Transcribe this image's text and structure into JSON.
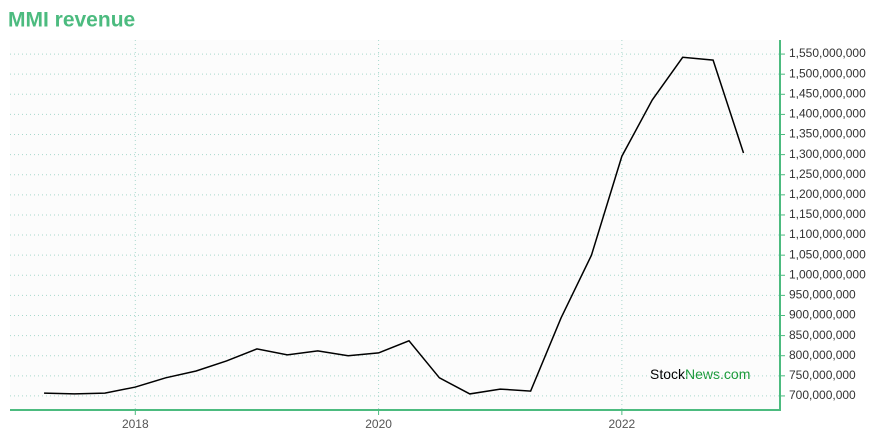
{
  "chart_data": {
    "type": "line",
    "title": "MMI revenue",
    "x": [
      2017.25,
      2017.5,
      2017.75,
      2018,
      2018.25,
      2018.5,
      2018.75,
      2019,
      2019.25,
      2019.5,
      2019.75,
      2020,
      2020.25,
      2020.5,
      2020.75,
      2021,
      2021.25,
      2021.5,
      2021.75,
      2022,
      2022.25,
      2022.5,
      2022.75,
      2023
    ],
    "series": [
      {
        "name": "MMI revenue",
        "color": "#000000",
        "values": [
          707000000,
          705000000,
          707000000,
          722000000,
          745000000,
          762000000,
          787000000,
          817000000,
          802000000,
          812000000,
          800000000,
          807000000,
          837000000,
          745000000,
          705000000,
          717000000,
          712000000,
          894000000,
          1050000000,
          1296000000,
          1436000000,
          1542000000,
          1535000000,
          1304000000
        ]
      }
    ],
    "xlim": [
      2016.97,
      2023.3
    ],
    "xticks": [
      2018,
      2020,
      2022
    ],
    "ylim": [
      665000000,
      1585000000
    ],
    "yticks": [
      {
        "value": 700000000,
        "label": "700,000,000"
      },
      {
        "value": 750000000,
        "label": "750,000,000"
      },
      {
        "value": 800000000,
        "label": "800,000,000"
      },
      {
        "value": 850000000,
        "label": "850,000,000"
      },
      {
        "value": 900000000,
        "label": "900,000,000"
      },
      {
        "value": 950000000,
        "label": "950,000,000"
      },
      {
        "value": 1000000000,
        "label": "1,000,000,000"
      },
      {
        "value": 1050000000,
        "label": "1,050,000,000"
      },
      {
        "value": 1100000000,
        "label": "1,100,000,000"
      },
      {
        "value": 1150000000,
        "label": "1,150,000,000"
      },
      {
        "value": 1200000000,
        "label": "1,200,000,000"
      },
      {
        "value": 1250000000,
        "label": "1,250,000,000"
      },
      {
        "value": 1300000000,
        "label": "1,300,000,000"
      },
      {
        "value": 1350000000,
        "label": "1,350,000,000"
      },
      {
        "value": 1400000000,
        "label": "1,400,000,000"
      },
      {
        "value": 1450000000,
        "label": "1,450,000,000"
      },
      {
        "value": 1500000000,
        "label": "1,500,000,000"
      },
      {
        "value": 1550000000,
        "label": "1,550,000,000"
      }
    ],
    "grid": true,
    "watermark": [
      "Stock",
      "News.com"
    ]
  }
}
